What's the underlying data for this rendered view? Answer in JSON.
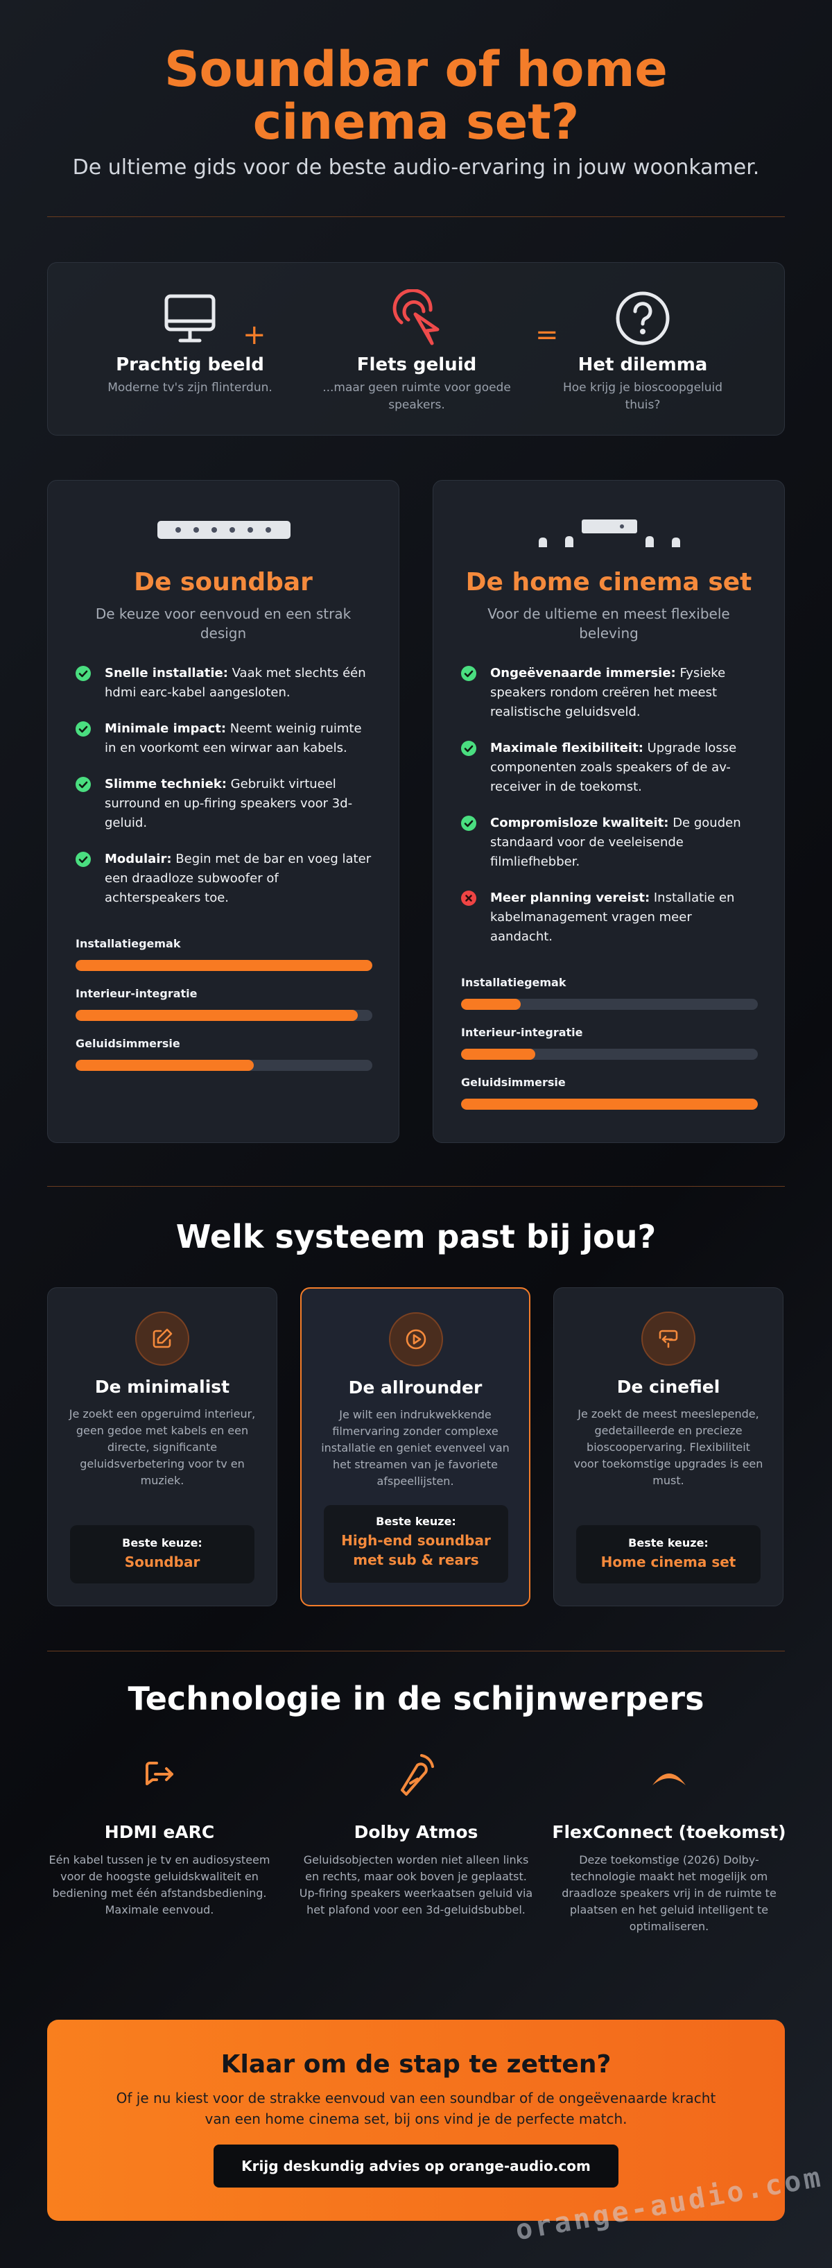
{
  "header": {
    "title": "Soundbar of home cinema set?",
    "subtitle": "De ultieme gids voor de beste audio-ervaring in jouw woonkamer."
  },
  "intro": {
    "items": [
      {
        "icon": "monitor-icon",
        "title": "Prachtig beeld",
        "desc": "Moderne tv's zijn flinterdun."
      },
      {
        "icon": "cursor-click-icon",
        "title": "Flets geluid",
        "desc": "...maar geen ruimte voor goede speakers."
      },
      {
        "icon": "question-circle-icon",
        "title": "Het dilemma",
        "desc": "Hoe krijg je bioscoopgeluid thuis?"
      }
    ],
    "plus": "+",
    "equals": "="
  },
  "soundbar": {
    "title": "De soundbar",
    "subtitle": "De keuze voor eenvoud en een strak design",
    "features": [
      {
        "type": "pro",
        "label": "Snelle installatie:",
        "text": " Vaak met slechts één hdmi earc-kabel aangesloten."
      },
      {
        "type": "pro",
        "label": "Minimale impact:",
        "text": " Neemt weinig ruimte in en voorkomt een wirwar aan kabels."
      },
      {
        "type": "pro",
        "label": "Slimme techniek:",
        "text": " Gebruikt virtueel surround en up-firing speakers voor 3d-geluid."
      },
      {
        "type": "pro",
        "label": "Modulair:",
        "text": " Begin met de bar en voeg later een draadloze subwoofer of achterspeakers toe."
      }
    ],
    "meters": [
      {
        "label": "Installatiegemak",
        "value": 1.0
      },
      {
        "label": "Interieur-integratie",
        "value": 0.95
      },
      {
        "label": "Geluidsimmersie",
        "value": 0.6
      }
    ]
  },
  "homecinema": {
    "title": "De home cinema set",
    "subtitle": "Voor de ultieme en meest flexibele beleving",
    "features": [
      {
        "type": "pro",
        "label": "Ongeëvenaarde immersie:",
        "text": " Fysieke speakers rondom creëren het meest realistische geluidsveld."
      },
      {
        "type": "pro",
        "label": "Maximale flexibiliteit:",
        "text": " Upgrade losse componenten zoals speakers of de av-receiver in de toekomst."
      },
      {
        "type": "pro",
        "label": "Compromisloze kwaliteit:",
        "text": " De gouden standaard voor de veeleisende filmliefhebber."
      },
      {
        "type": "con",
        "label": "Meer planning vereist:",
        "text": " Installatie en kabelmanagement vragen meer aandacht."
      }
    ],
    "meters": [
      {
        "label": "Installatiegemak",
        "value": 0.2
      },
      {
        "label": "Interieur-integratie",
        "value": 0.25
      },
      {
        "label": "Geluidsimmersie",
        "value": 1.0
      }
    ]
  },
  "personas": {
    "title": "Welk systeem past bij jou?",
    "choice_label": "Beste keuze:",
    "items": [
      {
        "icon": "edit-icon",
        "title": "De minimalist",
        "desc": "Je zoekt een opgeruimd interieur, geen gedoe met kabels en een directe, significante geluidsverbetering voor tv en muziek.",
        "choice": "Soundbar"
      },
      {
        "icon": "play-circle-icon",
        "title": "De allrounder",
        "desc": "Je wilt een indrukwekkende filmervaring zonder complexe installatie en geniet evenveel van het streamen van je favoriete afspeellijsten.",
        "choice": "High-end soundbar met sub & rears"
      },
      {
        "icon": "cast-icon",
        "title": "De cinefiel",
        "desc": "Je zoekt de meest meeslepende, gedetailleerde en precieze bioscoopervaring. Flexibiliteit voor toekomstige upgrades is een must.",
        "choice": "Home cinema set"
      }
    ]
  },
  "tech": {
    "title": "Technologie in de schijnwerpers",
    "items": [
      {
        "icon": "share-arrow-icon",
        "title": "HDMI eARC",
        "desc": "Eén kabel tussen je tv en audiosysteem voor de hoogste geluidskwaliteit en bediening met één afstandsbediening. Maximale eenvoud."
      },
      {
        "icon": "dolby-icon",
        "title": "Dolby Atmos",
        "desc": "Geluidsobjecten worden niet alleen links en rechts, maar ook boven je geplaatst. Up-firing speakers weerkaatsen geluid via het plafond voor een 3d-geluidsbubbel."
      },
      {
        "icon": "arc-icon",
        "title": "FlexConnect (toekomst)",
        "desc": "Deze toekomstige (2026) Dolby-technologie maakt het mogelijk om draadloze speakers vrij in de ruimte te plaatsen en het geluid intelligent te optimaliseren."
      }
    ]
  },
  "cta": {
    "title": "Klaar om de stap te zetten?",
    "desc": "Of je nu kiest voor de strakke eenvoud van een soundbar of de ongeëvenaarde kracht van een home cinema set, bij ons vind je de perfecte match.",
    "button": "Krijg deskundig advies op orange-audio.com"
  },
  "watermark": "orange-audio.com",
  "colors": {
    "accent": "#f47d2a",
    "pro": "#4ade80",
    "con": "#ef4444"
  }
}
